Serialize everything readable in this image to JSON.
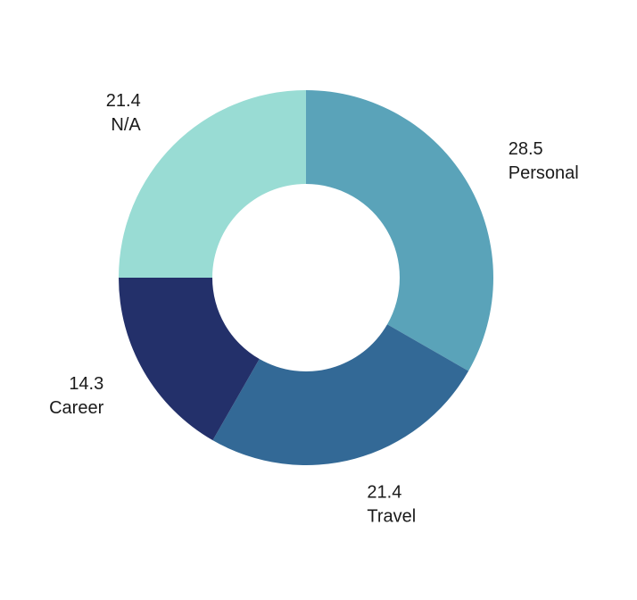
{
  "chart_data": {
    "type": "pie",
    "donut": true,
    "start_angle_deg": 0,
    "direction": "clockwise",
    "slices": [
      {
        "name": "Personal",
        "value": 28.5,
        "value_label": "28.5",
        "color": "#5aa3b9"
      },
      {
        "name": "Travel",
        "value": 21.4,
        "value_label": "21.4",
        "color": "#336996"
      },
      {
        "name": "Career",
        "value": 14.3,
        "value_label": "14.3",
        "color": "#23306a"
      },
      {
        "name": "N/A",
        "value": 21.4,
        "value_label": "21.4",
        "color": "#99dcd4"
      }
    ],
    "legend": "none",
    "grid": false
  }
}
